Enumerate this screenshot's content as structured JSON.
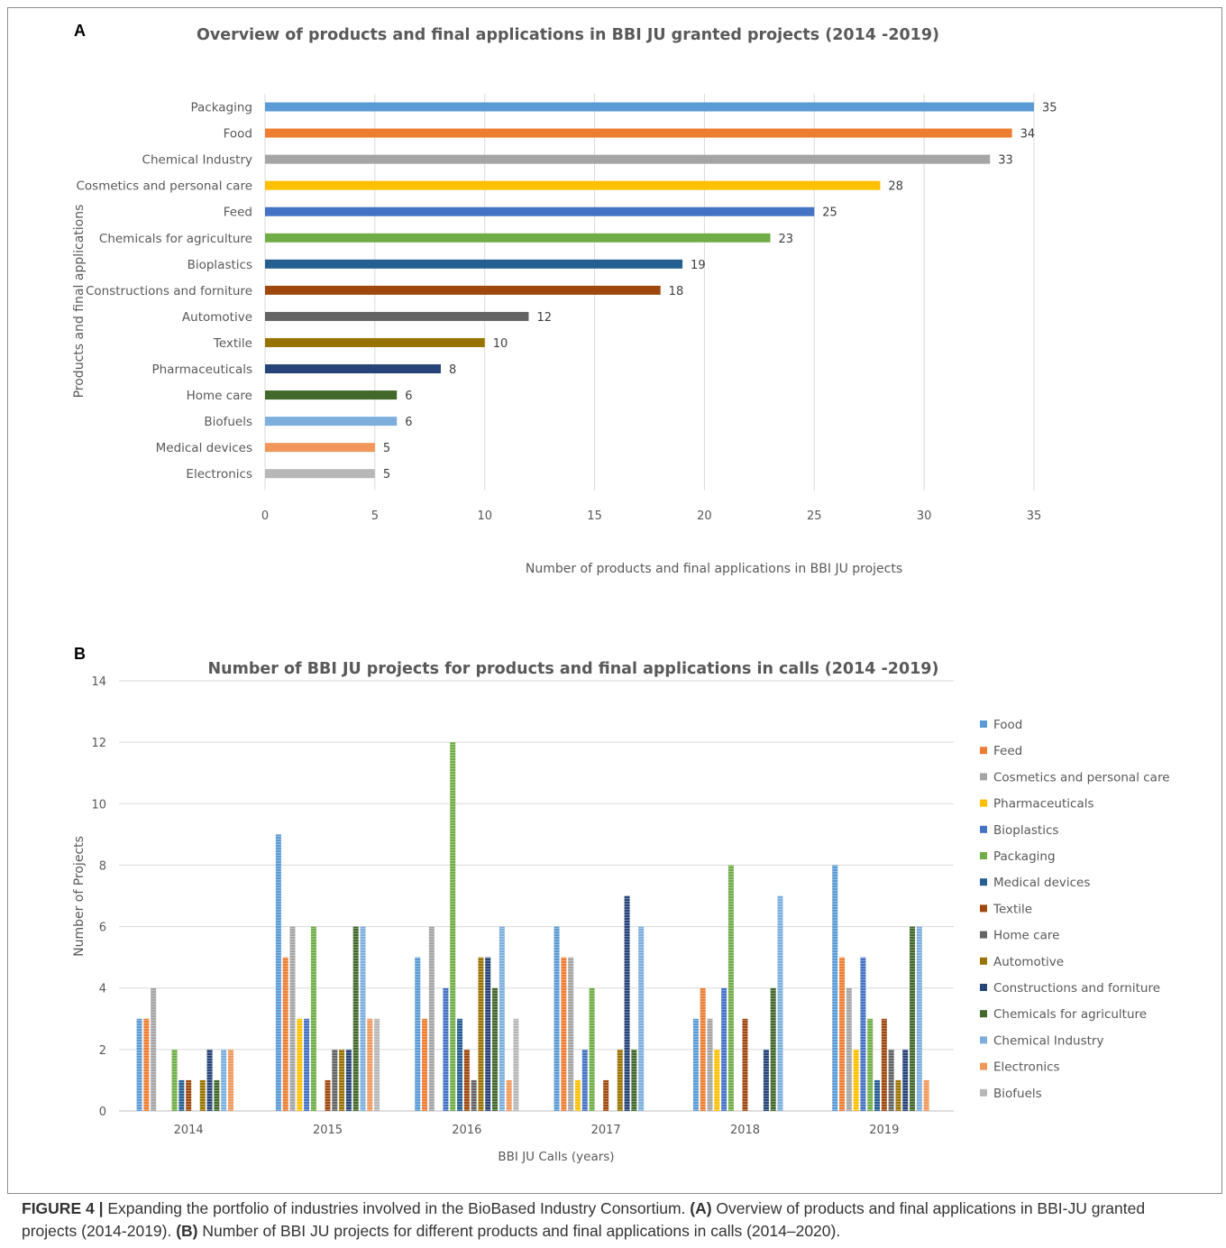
{
  "colors": {
    "Packaging": "#70ad47",
    "Food": "#5b9bd5",
    "Chemical Industry": "#9dc3e6",
    "Cosmetics and personal care": "#a5a5a5",
    "Feed": "#ed7d31",
    "Chemicals for agriculture": "#43682b",
    "Bioplastics": "#4472c4",
    "Constructions and forniture": "#2f4f8f",
    "Automotive": "#9e7b0f",
    "Textile": "#a9501e",
    "Pharmaceuticals": "#ffc000",
    "Home care": "#636363",
    "Biofuels": "#c0c0c0",
    "Medical devices": "#264478",
    "Electronics": "#f4a582",
    "gridline": "#d9d9d9",
    "text": "#595959"
  },
  "chart_data": [
    {
      "panel_label": "A",
      "type": "bar",
      "orientation": "horizontal",
      "title": "Overview of products and final applications in BBI JU granted projects (2014 -2019)",
      "xlabel": "Number of products and final applications in BBI JU projects",
      "ylabel": "Products and final applications",
      "xlim": [
        0,
        35
      ],
      "xticks": [
        "0",
        "5",
        "10",
        "15",
        "20",
        "25",
        "30",
        "35"
      ],
      "categories": [
        "Packaging",
        "Food",
        "Chemical Industry",
        "Cosmetics and personal care",
        "Feed",
        "Chemicals for agriculture",
        "Bioplastics",
        "Constructions and forniture",
        "Automotive",
        "Textile",
        "Pharmaceuticals",
        "Home care",
        "Biofuels",
        "Medical devices",
        "Electronics"
      ],
      "values": [
        35,
        34,
        33,
        28,
        25,
        23,
        19,
        18,
        12,
        10,
        8,
        6,
        6,
        5,
        5
      ],
      "bar_colors": [
        "#5b9bd5",
        "#ed7d31",
        "#a5a5a5",
        "#ffc000",
        "#4472c4",
        "#70ad47",
        "#255e91",
        "#9e480e",
        "#636363",
        "#997300",
        "#264478",
        "#43682b",
        "#7cafdd",
        "#f1975a",
        "#b7b7b7"
      ],
      "grid": true
    },
    {
      "panel_label": "B",
      "type": "bar",
      "orientation": "vertical",
      "title": "Number of BBI JU projects for products and final applications in calls (2014 -2019)",
      "xlabel": "BBI JU Calls (years)",
      "ylabel": "Number of Projects",
      "ylim": [
        0,
        14
      ],
      "yticks": [
        "0",
        "2",
        "4",
        "6",
        "8",
        "10",
        "12",
        "14"
      ],
      "categories": [
        "2014",
        "2015",
        "2016",
        "2017",
        "2018",
        "2019"
      ],
      "legend_position": "right",
      "grid": true,
      "series": [
        {
          "name": "Food",
          "values": [
            3,
            9,
            5,
            6,
            3,
            8
          ]
        },
        {
          "name": "Feed",
          "values": [
            3,
            5,
            3,
            5,
            4,
            5
          ]
        },
        {
          "name": "Cosmetics and personal care",
          "values": [
            4,
            6,
            6,
            5,
            3,
            4
          ]
        },
        {
          "name": "Pharmaceuticals",
          "values": [
            0,
            3,
            0,
            1,
            2,
            2
          ]
        },
        {
          "name": "Bioplastics",
          "values": [
            0,
            3,
            4,
            2,
            4,
            5
          ]
        },
        {
          "name": "Packaging",
          "values": [
            2,
            6,
            12,
            4,
            8,
            3
          ]
        },
        {
          "name": "Medical devices",
          "values": [
            1,
            0,
            3,
            0,
            0,
            1
          ]
        },
        {
          "name": "Textile",
          "values": [
            1,
            1,
            2,
            1,
            3,
            3
          ]
        },
        {
          "name": "Home care",
          "values": [
            0,
            2,
            1,
            0,
            0,
            2
          ]
        },
        {
          "name": "Automotive",
          "values": [
            1,
            2,
            5,
            2,
            0,
            1
          ]
        },
        {
          "name": "Constructions and forniture",
          "values": [
            2,
            2,
            5,
            7,
            2,
            2
          ]
        },
        {
          "name": "Chemicals for agriculture",
          "values": [
            1,
            6,
            4,
            2,
            4,
            6
          ]
        },
        {
          "name": "Chemical Industry",
          "values": [
            2,
            6,
            6,
            6,
            7,
            6
          ]
        },
        {
          "name": "Electronics",
          "values": [
            2,
            3,
            1,
            0,
            0,
            1
          ]
        },
        {
          "name": "Biofuels",
          "values": [
            0,
            3,
            3,
            0,
            0,
            0
          ]
        }
      ],
      "series_colors": [
        "#5b9bd5",
        "#ed7d31",
        "#a5a5a5",
        "#ffc000",
        "#4472c4",
        "#70ad47",
        "#255e91",
        "#9e480e",
        "#636363",
        "#997300",
        "#264478",
        "#43682b",
        "#7cafdd",
        "#f1975a",
        "#b7b7b7"
      ]
    }
  ],
  "caption": {
    "figure_label": "FIGURE 4 |",
    "text1": " Expanding the portfolio of industries involved in the BioBased Industry Consortium. ",
    "part_a_label": "(A)",
    "text2": " Overview of products and final applications in BBI-JU granted projects (2014-2019). ",
    "part_b_label": "(B)",
    "text3": " Number of BBI JU projects for different products and final applications in calls (2014–2020)."
  }
}
